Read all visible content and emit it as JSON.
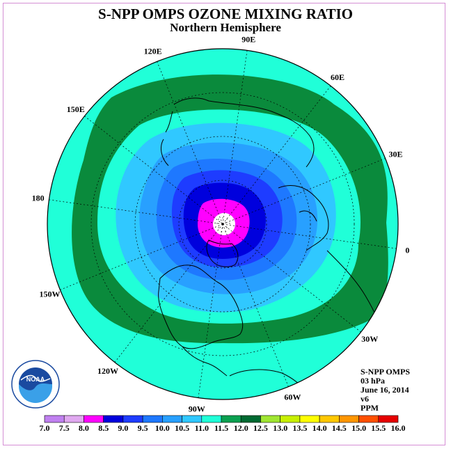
{
  "title": "S-NPP OMPS OZONE MIXING RATIO",
  "subtitle": "Northern Hemisphere",
  "info": {
    "instrument": "S-NPP OMPS",
    "level": "03 hPa",
    "date": "June 16, 2014",
    "version": "v6",
    "units": "PPM"
  },
  "logo_text": "NOAA",
  "longitude_labels": [
    {
      "text": "90E",
      "lon": 90
    },
    {
      "text": "60E",
      "lon": 60
    },
    {
      "text": "30E",
      "lon": 30
    },
    {
      "text": "0",
      "lon": 0
    },
    {
      "text": "30W",
      "lon": -30
    },
    {
      "text": "60W",
      "lon": -60
    },
    {
      "text": "90W",
      "lon": -90
    },
    {
      "text": "120W",
      "lon": -120
    },
    {
      "text": "150W",
      "lon": -150
    },
    {
      "text": "180",
      "lon": 180
    },
    {
      "text": "150E",
      "lon": 150
    },
    {
      "text": "120E",
      "lon": 120
    }
  ],
  "colorbar": {
    "ticks": [
      "7.0",
      "7.5",
      "8.0",
      "8.5",
      "9.0",
      "9.5",
      "10.0",
      "10.5",
      "11.0",
      "11.5",
      "12.0",
      "12.5",
      "13.0",
      "13.5",
      "14.0",
      "14.5",
      "15.0",
      "15.5",
      "16.0"
    ],
    "colors": [
      "#c080f0",
      "#e0a8f0",
      "#ff00ff",
      "#0000dd",
      "#1e3cff",
      "#1e78ff",
      "#28a0ff",
      "#30c8ff",
      "#20ffd8",
      "#0aa050",
      "#006a32",
      "#a0e632",
      "#c8f000",
      "#ffff00",
      "#ffc800",
      "#ff9600",
      "#ff5000",
      "#e60000",
      "#8b4a1e"
    ]
  },
  "contour_colors": {
    "outer": "#20ffd8",
    "green": "#0a8a3c",
    "light_cyan": "#30c8ff",
    "sky": "#28a0ff",
    "mid_blue": "#1e78ff",
    "blue": "#1e3cff",
    "navy": "#0000dd",
    "magenta": "#ff00ff",
    "pole": "#ffffff"
  }
}
